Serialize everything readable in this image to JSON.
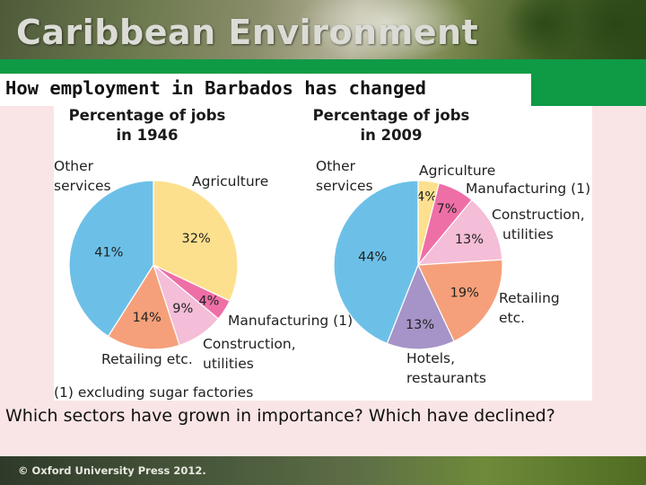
{
  "header": {
    "title": "Caribbean Environment"
  },
  "slide": {
    "subtitle": "How employment in Barbados has changed",
    "question": "Which sectors have grown in importance? Which have declined?"
  },
  "footer": {
    "copyright": "© Oxford University Press 2012."
  },
  "chart_data": [
    {
      "type": "pie",
      "title": "Percentage of jobs in 1946",
      "title_lines": [
        "Percentage of jobs",
        "in 1946"
      ],
      "slices": [
        {
          "label": "Agriculture",
          "value": 32,
          "value_label": "32%",
          "color": "#fde08e"
        },
        {
          "label": "Manufacturing (1)",
          "value": 4,
          "value_label": "4%",
          "color": "#ee6fa6"
        },
        {
          "label": "Construction, utilities",
          "value": 9,
          "value_label": "9%",
          "color": "#f4bdd8"
        },
        {
          "label": "Retailing etc.",
          "value": 14,
          "value_label": "14%",
          "color": "#f5a07a"
        },
        {
          "label": "Other services",
          "value": 41,
          "value_label": "41%",
          "color": "#6cc0e8"
        }
      ]
    },
    {
      "type": "pie",
      "title": "Percentage of jobs in 2009",
      "title_lines": [
        "Percentage of jobs",
        "in 2009"
      ],
      "slices": [
        {
          "label": "Agriculture",
          "value": 4,
          "value_label": "4%",
          "color": "#fde08e"
        },
        {
          "label": "Manufacturing (1)",
          "value": 7,
          "value_label": "7%",
          "color": "#ee6fa6"
        },
        {
          "label": "Construction, utilities",
          "value": 13,
          "value_label": "13%",
          "color": "#f4bdd8"
        },
        {
          "label": "Retailing etc.",
          "value": 19,
          "value_label": "19%",
          "color": "#f5a07a"
        },
        {
          "label": "Hotels, restaurants",
          "value": 13,
          "value_label": "13%",
          "color": "#a694c8"
        },
        {
          "label": "Other services",
          "value": 44,
          "value_label": "44%",
          "color": "#6cc0e8"
        }
      ]
    }
  ],
  "chart_note": "(1) excluding sugar factories"
}
